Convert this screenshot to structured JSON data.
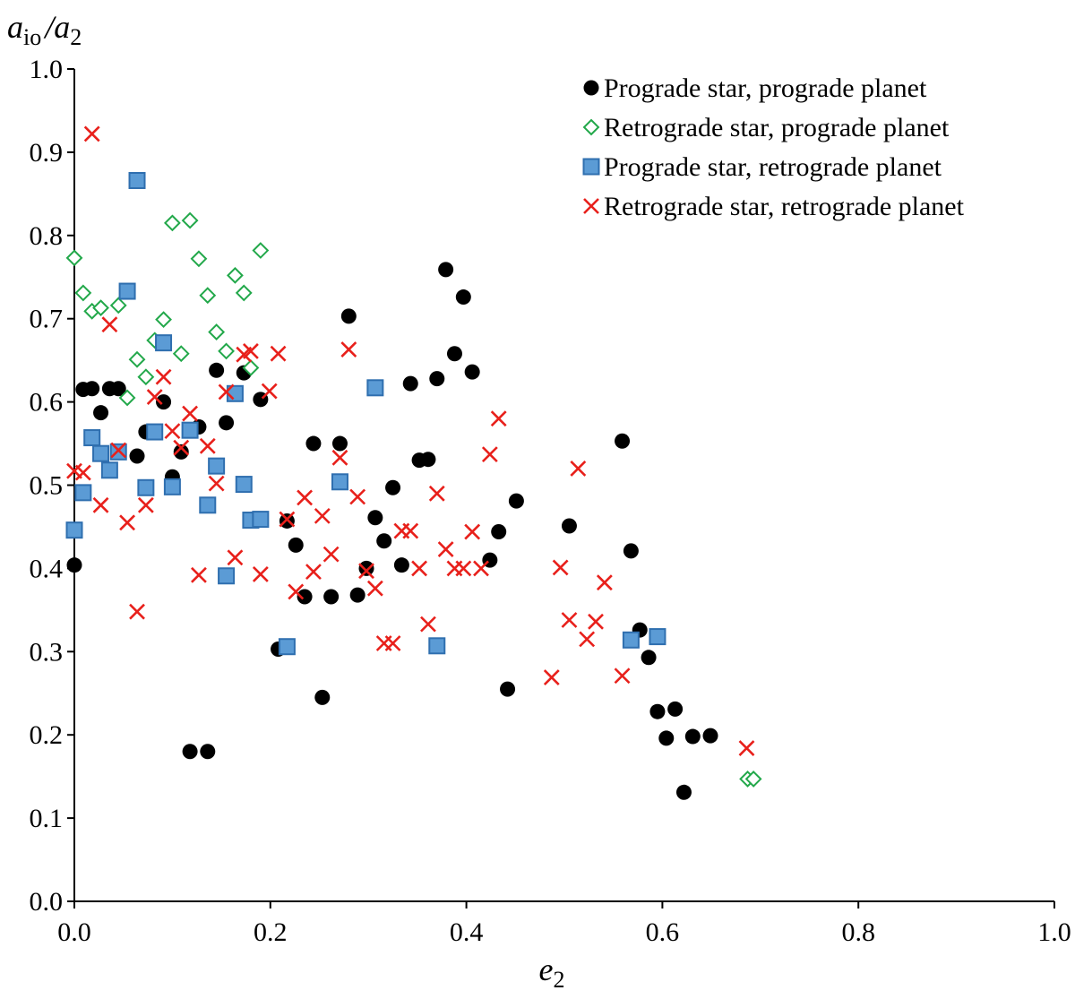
{
  "chart_data": {
    "type": "scatter",
    "title": "",
    "xlabel": {
      "main": "e",
      "sub": "2"
    },
    "ylabel": {
      "a": "a",
      "sub1": "io",
      "slash": "/",
      "b": "a",
      "sub2": "2"
    },
    "xlim": [
      0,
      1
    ],
    "ylim": [
      0,
      1
    ],
    "xticks": [
      "0.0",
      "0.2",
      "0.4",
      "0.6",
      "0.8",
      "1.0"
    ],
    "yticks": [
      "0.0",
      "0.1",
      "0.2",
      "0.3",
      "0.4",
      "0.5",
      "0.6",
      "0.7",
      "0.8",
      "0.9",
      "1.0"
    ],
    "grid": false,
    "legend_position": "top-right",
    "series": [
      {
        "name": "Prograde star, prograde planet",
        "marker": "circle",
        "color": "#000000",
        "points": [
          [
            0.0,
            0.404
          ],
          [
            0.009,
            0.615
          ],
          [
            0.018,
            0.616
          ],
          [
            0.027,
            0.587
          ],
          [
            0.036,
            0.616
          ],
          [
            0.045,
            0.616
          ],
          [
            0.064,
            0.535
          ],
          [
            0.073,
            0.564
          ],
          [
            0.091,
            0.6
          ],
          [
            0.1,
            0.51
          ],
          [
            0.109,
            0.54
          ],
          [
            0.118,
            0.18
          ],
          [
            0.127,
            0.57
          ],
          [
            0.136,
            0.18
          ],
          [
            0.145,
            0.638
          ],
          [
            0.155,
            0.575
          ],
          [
            0.173,
            0.635
          ],
          [
            0.18,
            0.457
          ],
          [
            0.19,
            0.603
          ],
          [
            0.208,
            0.303
          ],
          [
            0.217,
            0.457
          ],
          [
            0.226,
            0.428
          ],
          [
            0.235,
            0.366
          ],
          [
            0.244,
            0.55
          ],
          [
            0.253,
            0.245
          ],
          [
            0.262,
            0.366
          ],
          [
            0.271,
            0.55
          ],
          [
            0.28,
            0.703
          ],
          [
            0.289,
            0.368
          ],
          [
            0.298,
            0.4
          ],
          [
            0.307,
            0.461
          ],
          [
            0.316,
            0.433
          ],
          [
            0.325,
            0.497
          ],
          [
            0.334,
            0.404
          ],
          [
            0.343,
            0.622
          ],
          [
            0.352,
            0.53
          ],
          [
            0.361,
            0.531
          ],
          [
            0.37,
            0.628
          ],
          [
            0.379,
            0.759
          ],
          [
            0.388,
            0.658
          ],
          [
            0.397,
            0.726
          ],
          [
            0.406,
            0.636
          ],
          [
            0.424,
            0.41
          ],
          [
            0.433,
            0.444
          ],
          [
            0.442,
            0.255
          ],
          [
            0.451,
            0.481
          ],
          [
            0.505,
            0.451
          ],
          [
            0.559,
            0.553
          ],
          [
            0.568,
            0.421
          ],
          [
            0.577,
            0.326
          ],
          [
            0.586,
            0.293
          ],
          [
            0.595,
            0.228
          ],
          [
            0.604,
            0.196
          ],
          [
            0.613,
            0.231
          ],
          [
            0.622,
            0.131
          ],
          [
            0.631,
            0.198
          ],
          [
            0.649,
            0.199
          ]
        ]
      },
      {
        "name": "Retrograde star, prograde planet",
        "marker": "diamond-open",
        "color": "#22A84A",
        "points": [
          [
            0.0,
            0.773
          ],
          [
            0.009,
            0.731
          ],
          [
            0.018,
            0.709
          ],
          [
            0.027,
            0.713
          ],
          [
            0.045,
            0.716
          ],
          [
            0.054,
            0.605
          ],
          [
            0.064,
            0.651
          ],
          [
            0.073,
            0.63
          ],
          [
            0.082,
            0.674
          ],
          [
            0.091,
            0.699
          ],
          [
            0.1,
            0.815
          ],
          [
            0.109,
            0.658
          ],
          [
            0.118,
            0.818
          ],
          [
            0.127,
            0.772
          ],
          [
            0.136,
            0.728
          ],
          [
            0.145,
            0.684
          ],
          [
            0.155,
            0.661
          ],
          [
            0.164,
            0.752
          ],
          [
            0.173,
            0.731
          ],
          [
            0.18,
            0.641
          ],
          [
            0.19,
            0.782
          ],
          [
            0.687,
            0.147
          ],
          [
            0.693,
            0.147
          ]
        ]
      },
      {
        "name": "Prograde star, retrograde planet",
        "marker": "square",
        "color": "#5B9BD5",
        "points": [
          [
            0.0,
            0.446
          ],
          [
            0.009,
            0.491
          ],
          [
            0.018,
            0.557
          ],
          [
            0.027,
            0.538
          ],
          [
            0.036,
            0.518
          ],
          [
            0.045,
            0.54
          ],
          [
            0.054,
            0.733
          ],
          [
            0.064,
            0.866
          ],
          [
            0.073,
            0.497
          ],
          [
            0.082,
            0.564
          ],
          [
            0.091,
            0.671
          ],
          [
            0.1,
            0.498
          ],
          [
            0.118,
            0.566
          ],
          [
            0.136,
            0.476
          ],
          [
            0.145,
            0.523
          ],
          [
            0.155,
            0.391
          ],
          [
            0.164,
            0.61
          ],
          [
            0.173,
            0.501
          ],
          [
            0.18,
            0.458
          ],
          [
            0.19,
            0.459
          ],
          [
            0.217,
            0.306
          ],
          [
            0.271,
            0.504
          ],
          [
            0.307,
            0.617
          ],
          [
            0.37,
            0.307
          ],
          [
            0.568,
            0.314
          ],
          [
            0.595,
            0.318
          ]
        ]
      },
      {
        "name": "Retrograde star, retrograde planet",
        "marker": "x",
        "color": "#E8201B",
        "points": [
          [
            0.0,
            0.517
          ],
          [
            0.009,
            0.515
          ],
          [
            0.018,
            0.922
          ],
          [
            0.027,
            0.476
          ],
          [
            0.036,
            0.693
          ],
          [
            0.045,
            0.542
          ],
          [
            0.054,
            0.455
          ],
          [
            0.064,
            0.348
          ],
          [
            0.073,
            0.476
          ],
          [
            0.082,
            0.606
          ],
          [
            0.091,
            0.63
          ],
          [
            0.1,
            0.565
          ],
          [
            0.109,
            0.545
          ],
          [
            0.118,
            0.586
          ],
          [
            0.127,
            0.392
          ],
          [
            0.136,
            0.547
          ],
          [
            0.145,
            0.502
          ],
          [
            0.155,
            0.612
          ],
          [
            0.164,
            0.413
          ],
          [
            0.173,
            0.657
          ],
          [
            0.18,
            0.661
          ],
          [
            0.19,
            0.393
          ],
          [
            0.199,
            0.613
          ],
          [
            0.208,
            0.658
          ],
          [
            0.217,
            0.459
          ],
          [
            0.226,
            0.372
          ],
          [
            0.235,
            0.485
          ],
          [
            0.244,
            0.396
          ],
          [
            0.253,
            0.463
          ],
          [
            0.262,
            0.417
          ],
          [
            0.271,
            0.533
          ],
          [
            0.28,
            0.663
          ],
          [
            0.289,
            0.486
          ],
          [
            0.298,
            0.397
          ],
          [
            0.307,
            0.376
          ],
          [
            0.316,
            0.31
          ],
          [
            0.325,
            0.31
          ],
          [
            0.334,
            0.445
          ],
          [
            0.343,
            0.445
          ],
          [
            0.352,
            0.4
          ],
          [
            0.361,
            0.333
          ],
          [
            0.37,
            0.49
          ],
          [
            0.379,
            0.423
          ],
          [
            0.388,
            0.4
          ],
          [
            0.397,
            0.4
          ],
          [
            0.406,
            0.444
          ],
          [
            0.415,
            0.4
          ],
          [
            0.424,
            0.537
          ],
          [
            0.433,
            0.58
          ],
          [
            0.487,
            0.269
          ],
          [
            0.496,
            0.401
          ],
          [
            0.505,
            0.338
          ],
          [
            0.514,
            0.52
          ],
          [
            0.523,
            0.315
          ],
          [
            0.532,
            0.336
          ],
          [
            0.541,
            0.383
          ],
          [
            0.559,
            0.271
          ],
          [
            0.686,
            0.184
          ]
        ]
      }
    ]
  }
}
